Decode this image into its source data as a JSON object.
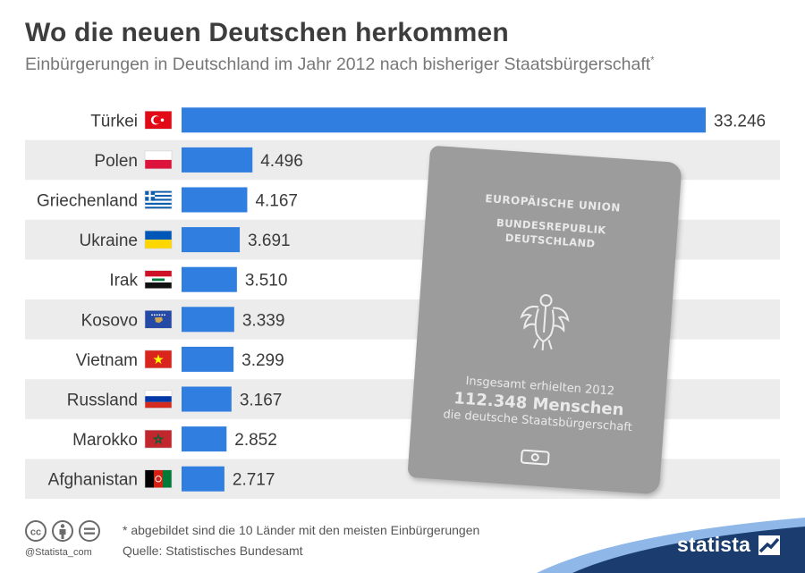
{
  "header": {
    "title": "Wo die neuen Deutschen herkommen",
    "subtitle": "Einbürgerungen in Deutschland im Jahr 2012 nach bisheriger Staatsbürgerschaft",
    "subtitle_mark": "*"
  },
  "chart_data": {
    "type": "bar",
    "orientation": "horizontal",
    "categories": [
      "Türkei",
      "Polen",
      "Griechenland",
      "Ukraine",
      "Irak",
      "Kosovo",
      "Vietnam",
      "Russland",
      "Marokko",
      "Afghanistan"
    ],
    "values": [
      33246,
      4496,
      4167,
      3691,
      3510,
      3339,
      3299,
      3167,
      2852,
      2717
    ],
    "value_labels": [
      "33.246",
      "4.496",
      "4.167",
      "3.691",
      "3.510",
      "3.339",
      "3.299",
      "3.167",
      "2.852",
      "2.717"
    ],
    "bar_color": "#2f7ee0",
    "row_stripe_color": "#ececec",
    "grid": false,
    "legend": "none"
  },
  "passport": {
    "line_eu": "EUROPÄISCHE UNION",
    "line_brd": "BUNDESREPUBLIK",
    "line_de": "DEUTSCHLAND",
    "note_line1": "Insgesamt erhielten 2012",
    "note_line2": "112.348 Menschen",
    "note_line3": "die deutsche Staatsbürgerschaft"
  },
  "footer": {
    "footnote": "* abgebildet sind die 10 Länder mit den meisten Einbürgerungen",
    "source": "Quelle: Statistisches Bundesamt",
    "handle": "@Statista_com",
    "brand": "statista",
    "cc_icons": [
      "cc-icon",
      "by-icon",
      "equals-icon"
    ]
  }
}
